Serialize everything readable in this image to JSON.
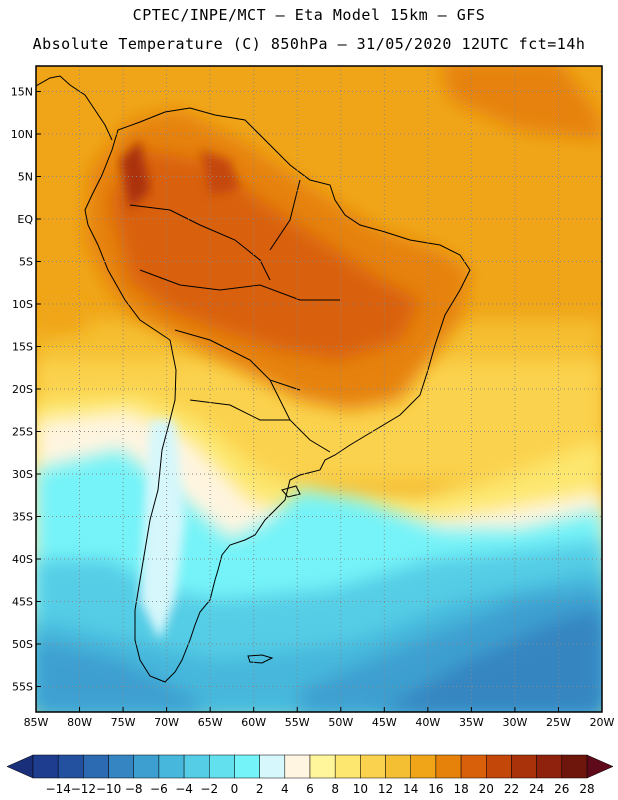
{
  "header": {
    "line1": "CPTEC/INPE/MCT –   Eta Model 15km – GFS",
    "line2": "Absolute Temperature (C) 850hPa – 31/05/2020 12UTC fct=14h"
  },
  "map": {
    "lat_ticks": [
      "15N",
      "10N",
      "5N",
      "EQ",
      "5S",
      "10S",
      "15S",
      "20S",
      "25S",
      "30S",
      "35S",
      "40S",
      "45S",
      "50S",
      "55S"
    ],
    "lon_ticks": [
      "85W",
      "80W",
      "75W",
      "70W",
      "65W",
      "60W",
      "55W",
      "50W",
      "45W",
      "40W",
      "35W",
      "30W",
      "25W",
      "20W"
    ],
    "lat_range": [
      18,
      -58
    ],
    "lon_range": [
      -85,
      -20
    ]
  },
  "colorbar": {
    "labels": [
      "-14",
      "-12",
      "-10",
      "-8",
      "-6",
      "-4",
      "-2",
      "0",
      "2",
      "4",
      "6",
      "8",
      "10",
      "12",
      "14",
      "16",
      "18",
      "20",
      "22",
      "24",
      "26",
      "28"
    ],
    "colors": [
      "#1f3d8f",
      "#23519f",
      "#2c6ab1",
      "#3485c1",
      "#3d9fd0",
      "#47b8dc",
      "#55cde6",
      "#62e0ee",
      "#74f3f8",
      "#d6f7fb",
      "#fff5e0",
      "#fff59a",
      "#fde76e",
      "#fbd24d",
      "#f5bf33",
      "#f0a518",
      "#e6820a",
      "#d9600a",
      "#c4470a",
      "#aa320b",
      "#8f220d",
      "#6e150c"
    ],
    "low_arrow_color": "#1a2f7a",
    "high_arrow_color": "#5e0a1a"
  }
}
